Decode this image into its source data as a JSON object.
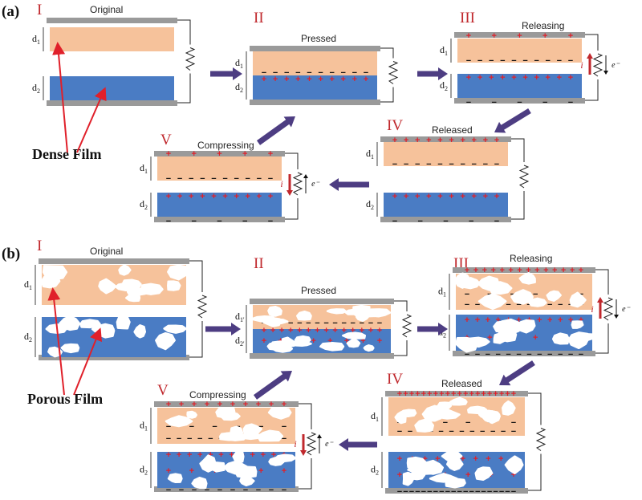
{
  "panel_a": {
    "label": "(a)",
    "film_label": "Dense Film",
    "stages": [
      {
        "numeral": "I",
        "state": "Original"
      },
      {
        "numeral": "II",
        "state": "Pressed"
      },
      {
        "numeral": "III",
        "state": "Releasing"
      },
      {
        "numeral": "IV",
        "state": "Released"
      },
      {
        "numeral": "V",
        "state": "Compressing"
      }
    ]
  },
  "panel_b": {
    "label": "(b)",
    "film_label": "Porous Film",
    "stages": [
      {
        "numeral": "I",
        "state": "Original"
      },
      {
        "numeral": "II",
        "state": "Pressed"
      },
      {
        "numeral": "III",
        "state": "Releasing"
      },
      {
        "numeral": "IV",
        "state": "Released"
      },
      {
        "numeral": "V",
        "state": "Compressing"
      }
    ]
  },
  "thickness_labels": {
    "top": "d1",
    "bottom": "d2",
    "top_pressed": "d1'",
    "bottom_pressed": "d2'"
  },
  "current_symbol": "i",
  "electron_symbol": "e⁻",
  "charge_plus": "+",
  "charge_minus": "−",
  "colors": {
    "electrode": "#9a9a9a",
    "top_film": "#f6c29b",
    "bottom_film": "#4a7cc4",
    "arrow": "#4d3d82",
    "pointer": "#e0202a",
    "numeral": "#c0282d"
  }
}
